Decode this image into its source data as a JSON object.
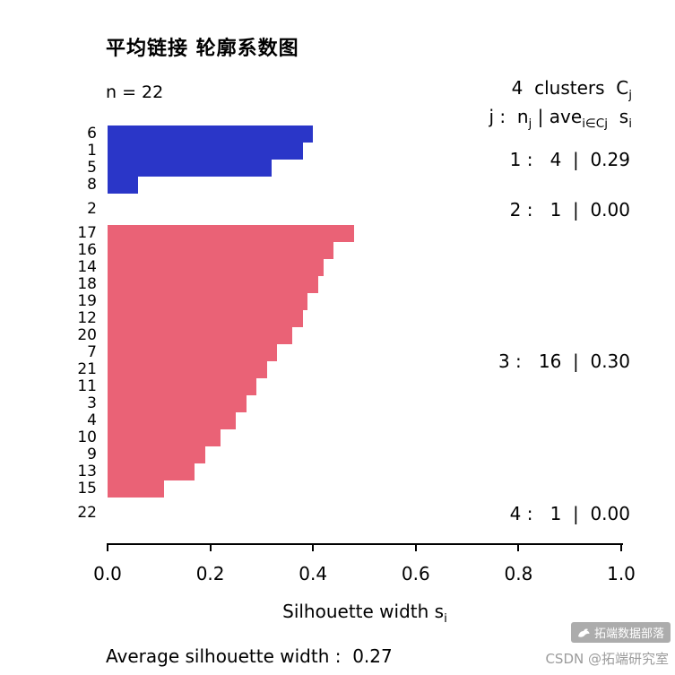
{
  "title": "平均链接 轮廓系数图",
  "n_label": "n = 22",
  "legend": {
    "clusters_text": "4  clusters  C",
    "clusters_sub": "j",
    "formula_j": "j :  n",
    "formula_j_sub": "j",
    "formula_mid": " | ave",
    "formula_mid_sub": "i∈Cj",
    "formula_s": "  s",
    "formula_s_sub": "i"
  },
  "x_axis": {
    "tick_labels": [
      "0.0",
      "0.2",
      "0.4",
      "0.6",
      "0.8",
      "1.0"
    ],
    "label_text": "Silhouette width s",
    "label_sub": "i"
  },
  "footer": {
    "average_label": "Average silhouette width :  ",
    "average_value": "0.27"
  },
  "watermark": {
    "logo_text": "拓端数据部落",
    "csdn_text": "CSDN @拓端研究室"
  },
  "colors": {
    "cluster_blue": "#2a36c8",
    "cluster_pink": "#ea6276",
    "watermark_gray": "#9b9b9b"
  },
  "chart_data": {
    "type": "bar",
    "orientation": "horizontal",
    "title": "平均链接 轮廓系数图",
    "xlabel": "Silhouette width s_i",
    "xlim": [
      0,
      1
    ],
    "x_ticks": [
      0.0,
      0.2,
      0.4,
      0.6,
      0.8,
      1.0
    ],
    "n": 22,
    "average_silhouette_width": 0.27,
    "legend_position": "right",
    "grid": false,
    "clusters": [
      {
        "j": "1",
        "size": "4",
        "ave": "0.29",
        "color": "#2a36c8",
        "items": [
          {
            "id": "6",
            "value": 0.4
          },
          {
            "id": "1",
            "value": 0.38
          },
          {
            "id": "5",
            "value": 0.32
          },
          {
            "id": "8",
            "value": 0.06
          }
        ]
      },
      {
        "j": "2",
        "size": "1",
        "ave": "0.00",
        "color": "#2a36c8",
        "items": [
          {
            "id": "2",
            "value": 0.0
          }
        ]
      },
      {
        "j": "3",
        "size": "16",
        "ave": "0.30",
        "color": "#ea6276",
        "items": [
          {
            "id": "17",
            "value": 0.48
          },
          {
            "id": "16",
            "value": 0.44
          },
          {
            "id": "14",
            "value": 0.42
          },
          {
            "id": "18",
            "value": 0.41
          },
          {
            "id": "19",
            "value": 0.39
          },
          {
            "id": "12",
            "value": 0.38
          },
          {
            "id": "20",
            "value": 0.36
          },
          {
            "id": "7",
            "value": 0.33
          },
          {
            "id": "21",
            "value": 0.31
          },
          {
            "id": "11",
            "value": 0.29
          },
          {
            "id": "3",
            "value": 0.27
          },
          {
            "id": "4",
            "value": 0.25
          },
          {
            "id": "10",
            "value": 0.22
          },
          {
            "id": "9",
            "value": 0.19
          },
          {
            "id": "13",
            "value": 0.17
          },
          {
            "id": "15",
            "value": 0.11
          }
        ]
      },
      {
        "j": "4",
        "size": "1",
        "ave": "0.00",
        "color": "#ea6276",
        "items": [
          {
            "id": "22",
            "value": 0.0
          }
        ]
      }
    ]
  }
}
